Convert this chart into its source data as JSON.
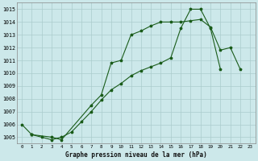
{
  "title": "Graphe pression niveau de la mer (hPa)",
  "bg_color": "#cce8ea",
  "grid_color": "#aacccc",
  "line_color": "#1a5c1a",
  "ylim": [
    1004.5,
    1015.5
  ],
  "xlim": [
    -0.5,
    23.5
  ],
  "yticks": [
    1005,
    1006,
    1007,
    1008,
    1009,
    1010,
    1011,
    1012,
    1013,
    1014,
    1015
  ],
  "xticks": [
    0,
    1,
    2,
    3,
    4,
    5,
    6,
    7,
    8,
    9,
    10,
    11,
    12,
    13,
    14,
    15,
    16,
    17,
    18,
    19,
    20,
    21,
    22,
    23
  ],
  "line1": {
    "x": [
      0,
      1
    ],
    "y": [
      1006.0,
      1005.2
    ]
  },
  "line2": {
    "x": [
      1,
      2,
      3,
      4,
      5,
      6,
      7,
      8,
      9,
      10,
      11,
      12,
      13,
      14,
      15,
      16,
      17,
      18,
      19,
      20
    ],
    "y": [
      1005.2,
      1005.0,
      1004.8,
      1005.0,
      1005.4,
      1006.2,
      1007.0,
      1007.9,
      1008.7,
      1009.2,
      1009.8,
      1010.2,
      1010.5,
      1010.8,
      1011.2,
      1013.5,
      1015.0,
      1015.0,
      1013.5,
      1010.3
    ]
  },
  "line3": {
    "x": [
      1,
      3,
      4,
      7,
      8,
      9,
      10,
      11,
      12,
      13,
      14,
      15,
      16,
      17,
      18,
      19,
      20,
      21,
      22
    ],
    "y": [
      1005.2,
      1005.0,
      1004.8,
      1007.5,
      1008.3,
      1010.8,
      1011.0,
      1013.0,
      1013.3,
      1013.7,
      1014.0,
      1014.0,
      1014.0,
      1014.1,
      1014.2,
      1013.6,
      1011.8,
      1012.0,
      1010.3
    ]
  }
}
